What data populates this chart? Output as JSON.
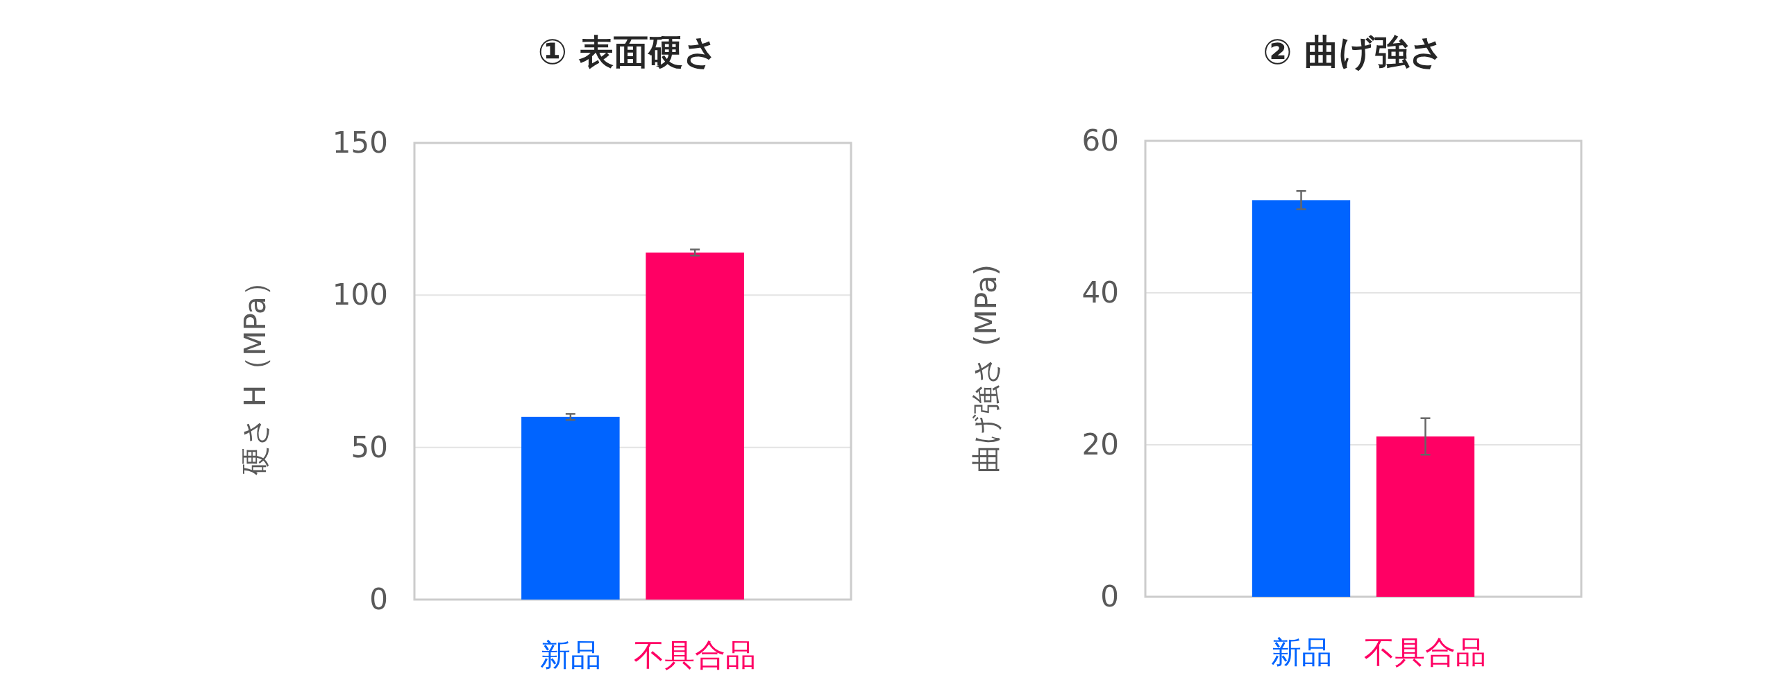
{
  "chart_data": [
    {
      "type": "bar",
      "title": "① 表面硬さ",
      "ylabel": "硬さ H（MPa）",
      "categories": [
        "新品",
        "不具合品"
      ],
      "values": [
        60,
        114
      ],
      "errors": [
        1,
        1
      ],
      "colors": [
        "#0064ff",
        "#ff0064"
      ],
      "ylim": [
        0,
        150
      ],
      "yticks": [
        0,
        50,
        100,
        150
      ],
      "grid": "y"
    },
    {
      "type": "bar",
      "title": "② 曲げ強さ",
      "ylabel": "曲げ強さ (MPa)",
      "categories": [
        "新品",
        "不具合品"
      ],
      "values": [
        52.2,
        21.1
      ],
      "errors": [
        1.2,
        2.4
      ],
      "colors": [
        "#0064ff",
        "#ff0064"
      ],
      "ylim": [
        0,
        60
      ],
      "yticks": [
        0,
        20,
        40,
        60
      ],
      "grid": "y"
    }
  ]
}
